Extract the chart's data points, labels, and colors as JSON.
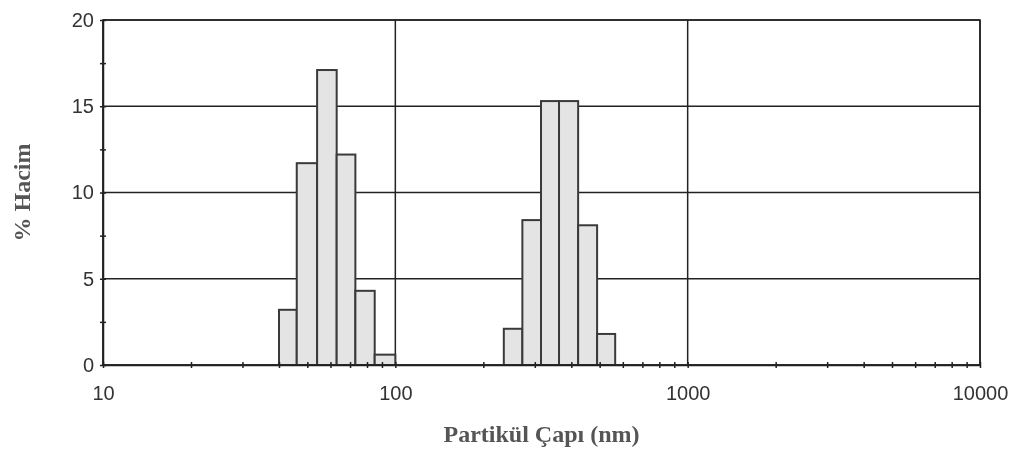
{
  "chart_data": {
    "type": "histogram",
    "xlabel": "Partikül Çapı (nm)",
    "ylabel": "% Hacim",
    "log": "x",
    "color": "#e4e4e4",
    "bins": [
      40,
      46,
      54,
      63,
      73,
      85,
      100,
      235,
      272,
      315,
      363,
      422,
      490,
      565
    ],
    "values": [
      3.2,
      11.7,
      17.1,
      12.2,
      4.3,
      0.6,
      0,
      2.1,
      8.4,
      15.3,
      15.3,
      8.1,
      1.8
    ],
    "xlim": [
      10,
      10000
    ],
    "xticks": [
      10,
      {
        "value": 20,
        "label": null
      },
      {
        "value": 30,
        "label": null
      },
      {
        "value": 40,
        "label": null
      },
      {
        "value": 50,
        "label": null
      },
      {
        "value": 60,
        "label": null
      },
      {
        "value": 70,
        "label": null
      },
      {
        "value": 80,
        "label": null
      },
      {
        "value": 90,
        "label": null
      },
      100,
      {
        "value": 200,
        "label": null
      },
      {
        "value": 300,
        "label": null
      },
      {
        "value": 400,
        "label": null
      },
      {
        "value": 500,
        "label": null
      },
      {
        "value": 600,
        "label": null
      },
      {
        "value": 700,
        "label": null
      },
      {
        "value": 800,
        "label": null
      },
      {
        "value": 900,
        "label": null
      },
      1000,
      {
        "value": 2000,
        "label": null
      },
      {
        "value": 3000,
        "label": null
      },
      {
        "value": 4000,
        "label": null
      },
      {
        "value": 5000,
        "label": null
      },
      {
        "value": 6000,
        "label": null
      },
      {
        "value": 7000,
        "label": null
      },
      {
        "value": 8000,
        "label": null
      },
      {
        "value": 9000,
        "label": null
      },
      10000
    ],
    "ylim": [
      0,
      20
    ],
    "yticks": [
      0,
      {
        "value": 2.5,
        "label": null
      },
      5,
      {
        "value": 7.5,
        "label": null
      },
      10,
      {
        "value": 12.5,
        "label": null
      },
      15,
      {
        "value": 17.5,
        "label": null
      },
      20
    ],
    "grid": true
  }
}
